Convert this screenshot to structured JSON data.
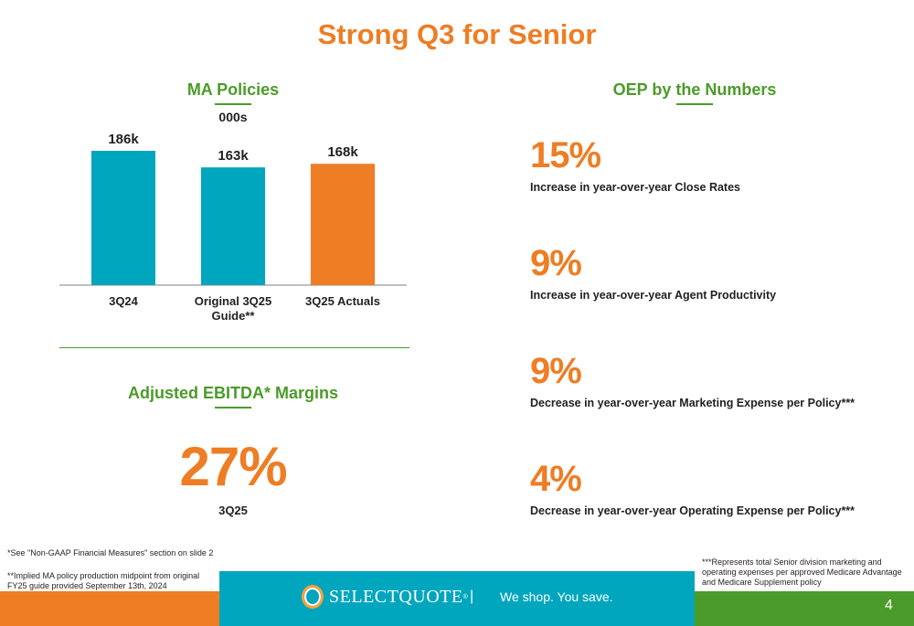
{
  "title": "Strong Q3 for Senior",
  "ma_section": {
    "heading": "MA Policies",
    "units": "000s"
  },
  "chart_data": {
    "type": "bar",
    "categories": [
      "3Q24",
      "Original 3Q25\nGuide**",
      "3Q25 Actuals"
    ],
    "values": [
      186,
      163,
      168
    ],
    "data_labels": [
      "186k",
      "163k",
      "168k"
    ],
    "colors": [
      "#00a6bd",
      "#00a6bd",
      "#ee7d24"
    ],
    "title": "MA Policies",
    "ylabel": "000s",
    "ylim": [
      0,
      200
    ],
    "grid": false
  },
  "ebitda_section": {
    "heading": "Adjusted EBITDA* Margins",
    "value": "27%",
    "period": "3Q25"
  },
  "oep_section": {
    "heading": "OEP by the Numbers",
    "stats": [
      {
        "value": "15%",
        "description": "Increase in year-over-year Close Rates"
      },
      {
        "value": "9%",
        "description": "Increase in year-over-year Agent Productivity"
      },
      {
        "value": "9%",
        "description": "Decrease in year-over-year Marketing Expense per Policy***"
      },
      {
        "value": "4%",
        "description": "Decrease in year-over-year Operating Expense per Policy***"
      }
    ]
  },
  "footnotes": {
    "non_gaap": "*See \"Non-GAAP Financial Measures\" section on slide 2",
    "implied_ma": "**Implied MA policy production midpoint from original FY25 guide provided September 13th, 2024",
    "represents": "***Represents total Senior division marketing and operating expenses per approved Medicare Advantage and Medicare Supplement policy"
  },
  "footer": {
    "logo_text": "SELECTQUOTE",
    "logo_mark": "®",
    "separator": "|",
    "tagline": "We shop. You save.",
    "page_number": "4"
  },
  "colors": {
    "orange": "#ee7d24",
    "green": "#4b9b2a",
    "teal": "#00a6bd"
  }
}
